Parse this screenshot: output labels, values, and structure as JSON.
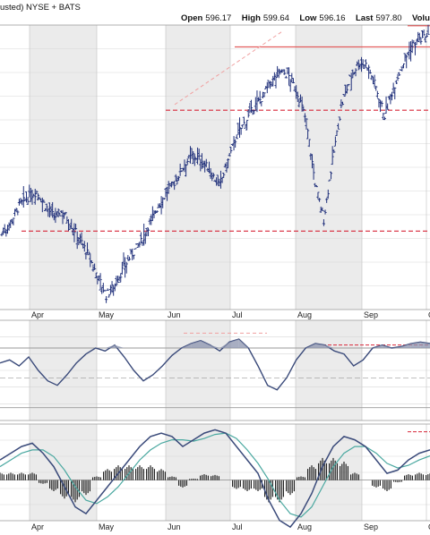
{
  "header": {
    "left_text": "usted) NYSE + BATS",
    "quote": [
      {
        "label": "Open",
        "value": "596.17"
      },
      {
        "label": "High",
        "value": "599.64"
      },
      {
        "label": "Low",
        "value": "596.16"
      },
      {
        "label": "Last",
        "value": "597.80"
      },
      {
        "label": "Volume",
        "value": ""
      }
    ]
  },
  "colors": {
    "price_bar": "#1f2f7a",
    "resistance_solid": "#e05050",
    "support_dashed": "#d8283a",
    "trend_dashed": "#f0a0a0",
    "macd_line": "#3a4a7a",
    "signal_line": "#4aa8a0",
    "histogram": "#222222",
    "band": "#ebebeb",
    "grid": "#d7d7d7"
  },
  "x_axis": {
    "months": [
      "Apr",
      "May",
      "Jun",
      "Jul",
      "Aug",
      "Sep",
      "O"
    ]
  },
  "chart_data": [
    {
      "type": "ohlc",
      "panel": "price",
      "series": [
        {
          "name": "",
          "close_path": [
            [
              0,
              530
            ],
            [
              3,
              534
            ],
            [
              6,
              540
            ],
            [
              9,
              543
            ],
            [
              12,
              545
            ],
            [
              15,
              540
            ],
            [
              18,
              536
            ],
            [
              21,
              538
            ],
            [
              24,
              533
            ],
            [
              27,
              528
            ],
            [
              30,
              522
            ],
            [
              33,
              515
            ],
            [
              36,
              508
            ],
            [
              39,
              512
            ],
            [
              42,
              518
            ],
            [
              45,
              523
            ],
            [
              48,
              527
            ],
            [
              51,
              534
            ],
            [
              54,
              540
            ],
            [
              57,
              545
            ],
            [
              60,
              549
            ],
            [
              63,
              555
            ],
            [
              66,
              558
            ],
            [
              69,
              556
            ],
            [
              72,
              552
            ],
            [
              75,
              547
            ],
            [
              78,
              556
            ],
            [
              81,
              565
            ],
            [
              84,
              570
            ],
            [
              87,
              575
            ],
            [
              90,
              579
            ],
            [
              93,
              584
            ],
            [
              96,
              588
            ],
            [
              99,
              586
            ],
            [
              102,
              580
            ],
            [
              105,
              570
            ],
            [
              108,
              548
            ],
            [
              111,
              535
            ],
            [
              114,
              556
            ],
            [
              117,
              575
            ],
            [
              120,
              585
            ],
            [
              123,
              591
            ],
            [
              126,
              590
            ],
            [
              129,
              582
            ],
            [
              132,
              572
            ],
            [
              135,
              582
            ],
            [
              138,
              590
            ],
            [
              141,
              596
            ],
            [
              144,
              599
            ],
            [
              147,
              600
            ]
          ]
        },
        {
          "name": "",
          "horizontal_levels": [
            574,
            557,
            531
          ]
        }
      ]
    },
    {
      "type": "line",
      "panel": "momentum",
      "series": [
        {
          "name": "",
          "values": [
            60,
            62,
            58,
            64,
            55,
            48,
            45,
            52,
            60,
            66,
            70,
            68,
            72,
            64,
            55,
            48,
            52,
            58,
            65,
            70,
            73,
            75,
            72,
            68,
            74,
            76,
            70,
            58,
            45,
            42,
            50,
            62,
            70,
            73,
            72,
            68,
            66,
            58,
            62,
            70,
            72,
            70,
            71,
            73,
            74,
            73
          ]
        }
      ],
      "levels": [
        70,
        50,
        30
      ]
    },
    {
      "type": "line",
      "panel": "macd",
      "series": [
        {
          "name": "",
          "values": [
            3,
            4,
            5,
            5.5,
            4,
            2,
            -1,
            -4,
            -5,
            -3,
            -1,
            1,
            3,
            5,
            6.5,
            7,
            6.5,
            5,
            6,
            7,
            7.5,
            7,
            5,
            3,
            1,
            -3,
            -6,
            -7,
            -5,
            -2,
            2,
            5,
            6.5,
            6,
            5,
            3,
            1,
            1.5,
            3,
            4,
            4.5
          ]
        },
        {
          "name": "",
          "values": [
            2,
            3,
            4,
            4.5,
            4.5,
            3.5,
            1.5,
            -1,
            -3,
            -3.5,
            -2.5,
            -1,
            1,
            3,
            4.5,
            5.5,
            6,
            6,
            5.8,
            6.2,
            6.8,
            7,
            6.2,
            4.5,
            2.5,
            0,
            -3,
            -5,
            -5.5,
            -4,
            -1,
            2,
            4,
            5,
            5,
            4,
            2.5,
            1.8,
            2.2,
            3,
            3.6
          ]
        }
      ]
    }
  ]
}
